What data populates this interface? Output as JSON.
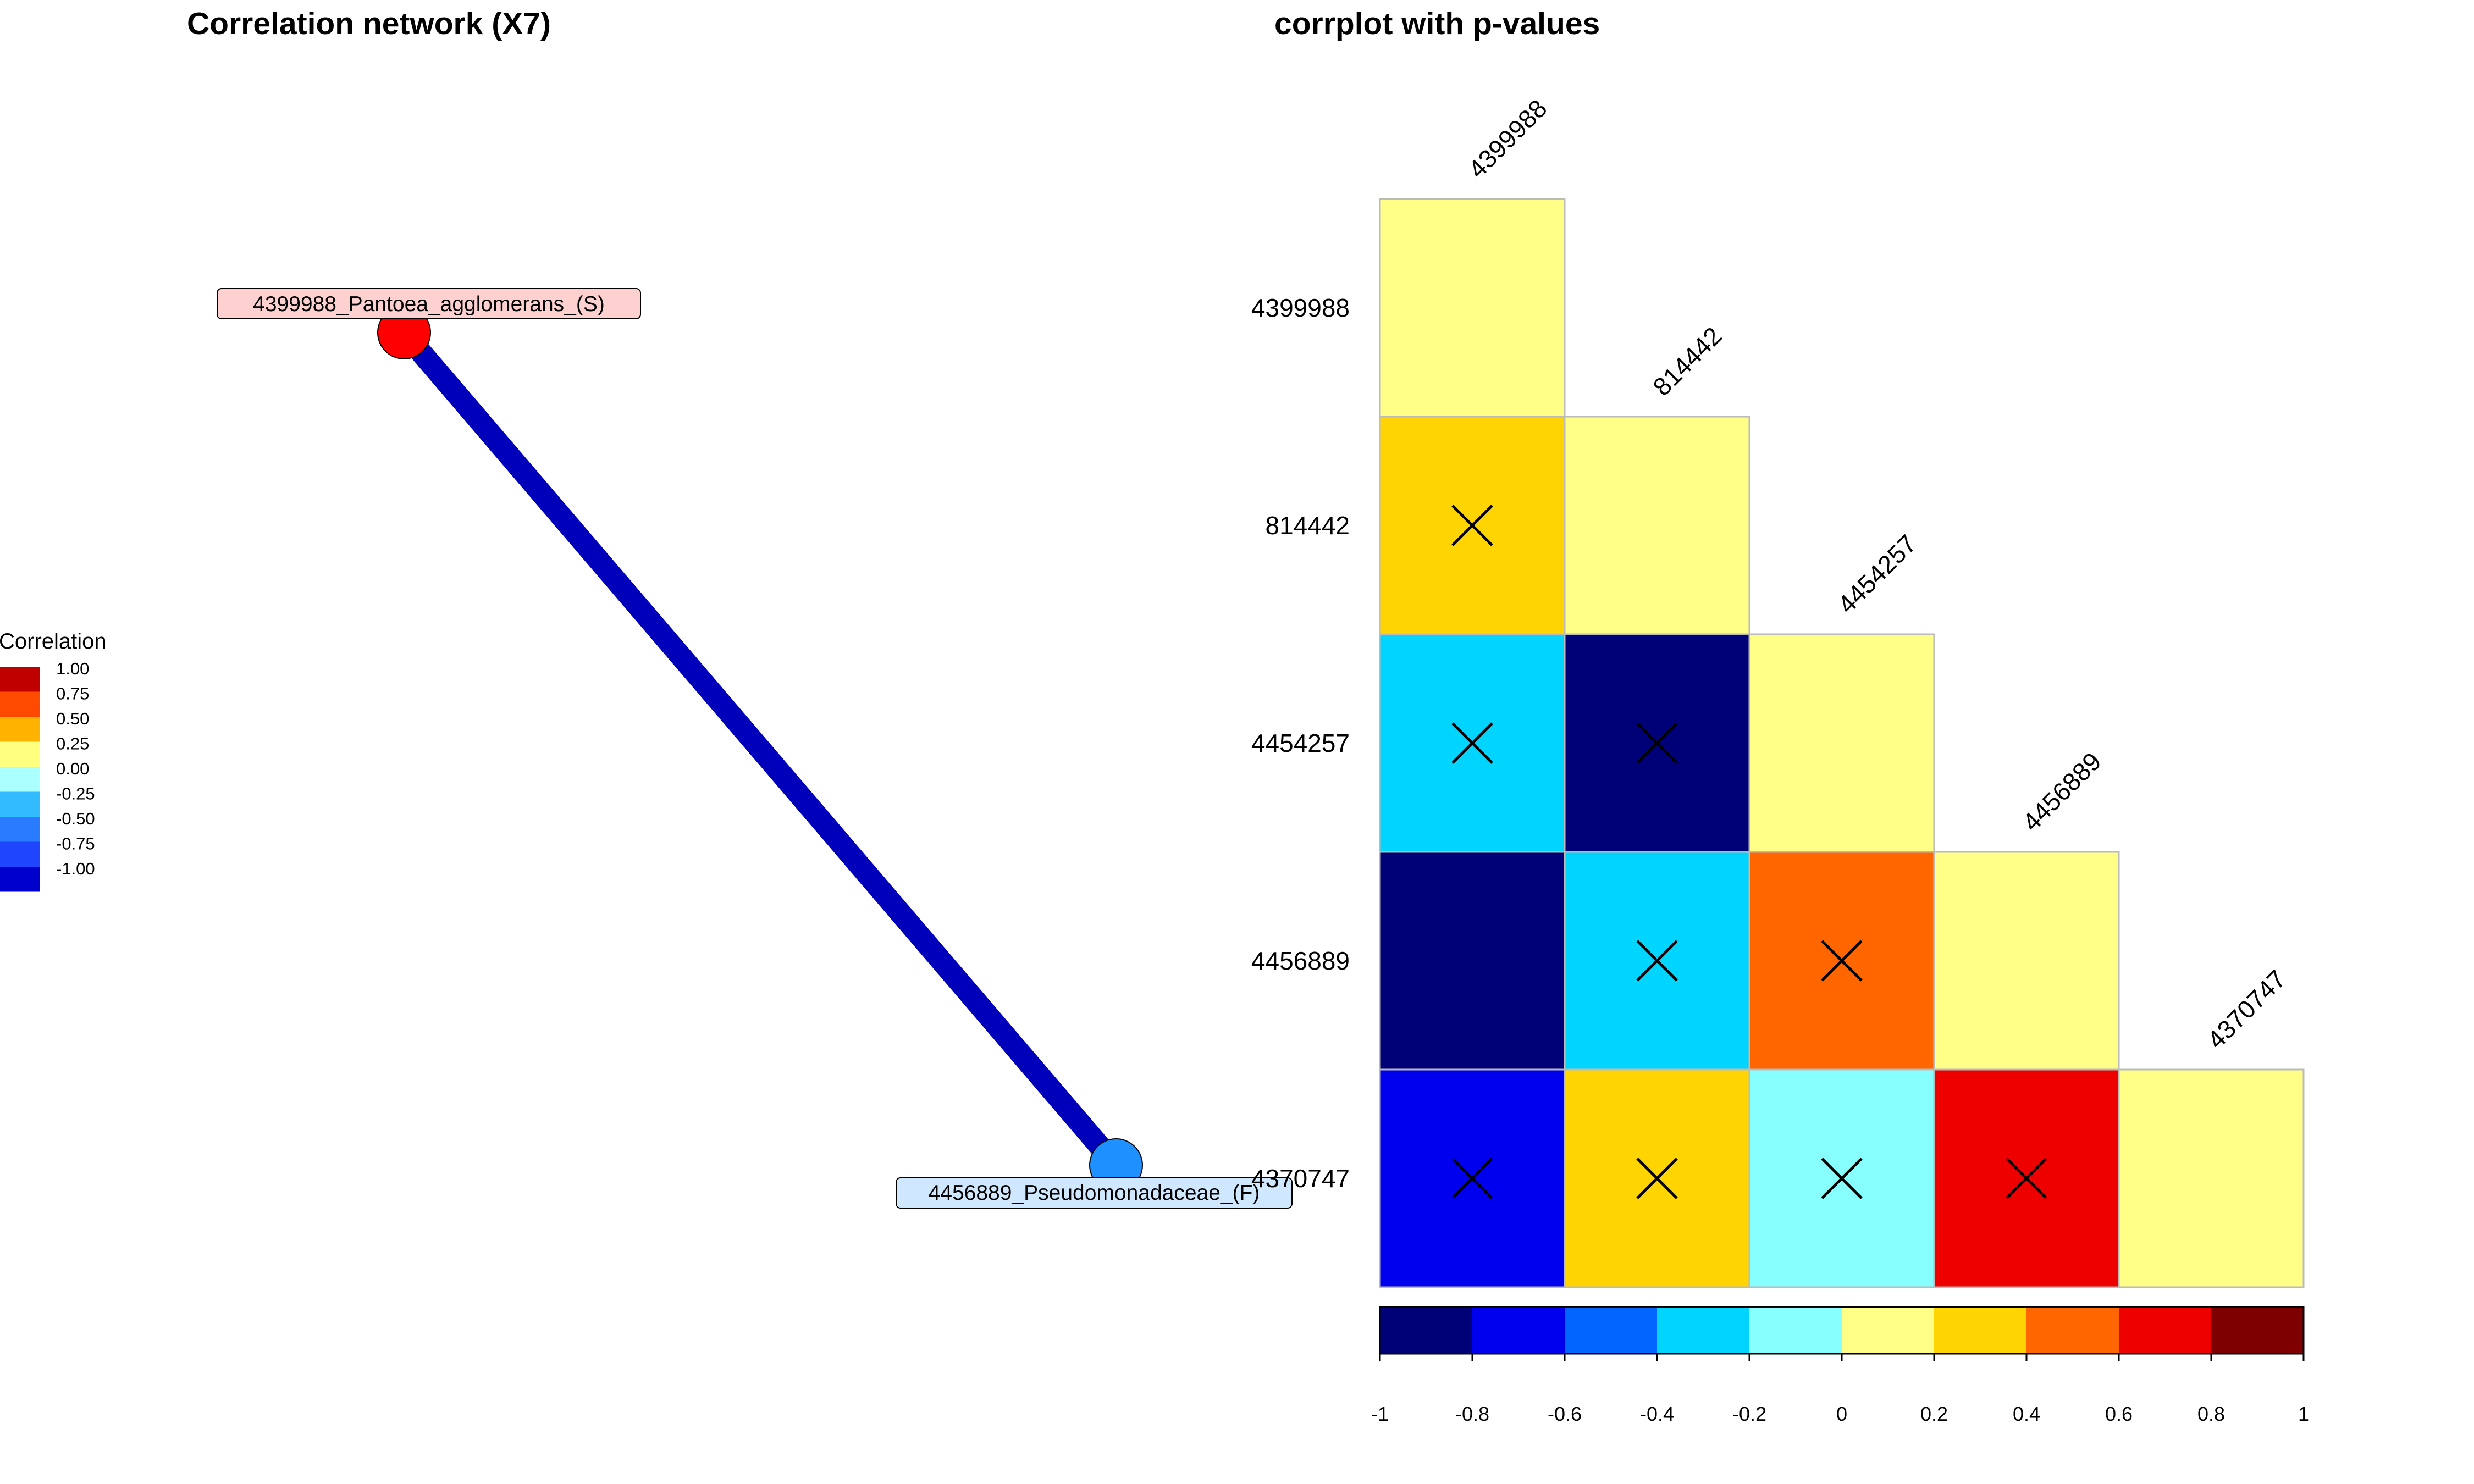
{
  "network": {
    "title": "Correlation network (X7)",
    "legend": {
      "title": "Correlation",
      "entries": [
        {
          "label": "1.00",
          "color": "#c00000"
        },
        {
          "label": "0.75",
          "color": "#ff4a00"
        },
        {
          "label": "0.50",
          "color": "#ffb300"
        },
        {
          "label": "0.25",
          "color": "#ffff80"
        },
        {
          "label": "0.00",
          "color": "#aaffff"
        },
        {
          "label": "-0.25",
          "color": "#33bbff"
        },
        {
          "label": "-0.50",
          "color": "#2a7bff"
        },
        {
          "label": "-0.75",
          "color": "#1f45ff"
        },
        {
          "label": "-1.00",
          "color": "#0000cc"
        }
      ]
    },
    "nodes": [
      {
        "id": "4399988",
        "label": "4399988_Pantoea_agglomerans_(S)",
        "color": "#ff0000",
        "label_bg": "#ffd0d0"
      },
      {
        "id": "4456889",
        "label": "4456889_Pseudomonadaceae_(F)",
        "color": "#1e90ff",
        "label_bg": "#d0e8ff"
      }
    ],
    "edges": [
      {
        "from": "4399988",
        "to": "4456889",
        "correlation": -1.0,
        "color": "#0000bb"
      }
    ]
  },
  "chart_data": {
    "type": "heatmap",
    "title": "corrplot with p-values",
    "variables": [
      "4399988",
      "814442",
      "4454257",
      "4456889",
      "4370747"
    ],
    "matrix_lower": [
      [
        null
      ],
      [
        0.3,
        null
      ],
      [
        -0.3,
        -0.9,
        null
      ],
      [
        -0.9,
        -0.3,
        0.5,
        null
      ],
      [
        -0.7,
        0.3,
        -0.1,
        0.7,
        null
      ]
    ],
    "diagonal_color": "#ffff88",
    "crossed": [
      [
        1,
        0
      ],
      [
        2,
        0
      ],
      [
        2,
        1
      ],
      [
        3,
        1
      ],
      [
        3,
        2
      ],
      [
        4,
        0
      ],
      [
        4,
        1
      ],
      [
        4,
        2
      ],
      [
        4,
        3
      ]
    ],
    "colorbar": {
      "ticks": [
        "-1",
        "-0.8",
        "-0.6",
        "-0.4",
        "-0.2",
        "0",
        "0.2",
        "0.4",
        "0.6",
        "0.8",
        "1"
      ],
      "colors": [
        "#000077",
        "#0000ee",
        "#0066ff",
        "#00d4ff",
        "#88ffff",
        "#ffff88",
        "#ffd400",
        "#ff6600",
        "#ee0000",
        "#7f0000"
      ]
    }
  }
}
